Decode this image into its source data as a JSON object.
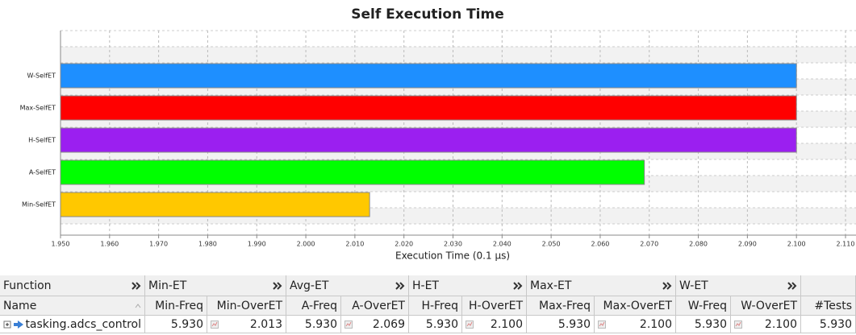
{
  "chart_data": {
    "type": "bar",
    "orientation": "horizontal",
    "title": "Self Execution Time",
    "x_label": "Execution Time (0.1 µs)",
    "categories": [
      "W-SelfET",
      "Max-SelfET",
      "H-SelfET",
      "A-SelfET",
      "Min-SelfET"
    ],
    "values": [
      2.1,
      2.1,
      2.1,
      2.069,
      2.013
    ],
    "colors": [
      "#1e8fff",
      "#ff0000",
      "#9b1ff0",
      "#00ff00",
      "#ffc800"
    ],
    "xlim": [
      1.95,
      2.11
    ],
    "xticks": [
      {
        "value": 1.95,
        "label": "1.950"
      },
      {
        "value": 1.96,
        "label": "1.960"
      },
      {
        "value": 1.97,
        "label": "1.970"
      },
      {
        "value": 1.98,
        "label": "1.980"
      },
      {
        "value": 1.99,
        "label": "1.990"
      },
      {
        "value": 2.0,
        "label": "2.000"
      },
      {
        "value": 2.01,
        "label": "2.010"
      },
      {
        "value": 2.02,
        "label": "2.020"
      },
      {
        "value": 2.03,
        "label": "2.030"
      },
      {
        "value": 2.04,
        "label": "2.040"
      },
      {
        "value": 2.05,
        "label": "2.050"
      },
      {
        "value": 2.06,
        "label": "2.060"
      },
      {
        "value": 2.07,
        "label": "2.070"
      },
      {
        "value": 2.08,
        "label": "2.080"
      },
      {
        "value": 2.09,
        "label": "2.090"
      },
      {
        "value": 2.1,
        "label": "2.100"
      },
      {
        "value": 2.11,
        "label": "2.110"
      }
    ],
    "grid": true
  },
  "table": {
    "group_headers": [
      "Function",
      "Min-ET",
      "Avg-ET",
      "H-ET",
      "Max-ET",
      "W-ET"
    ],
    "columns": [
      "Name",
      "Min-Freq",
      "Min-OverET",
      "A-Freq",
      "A-OverET",
      "H-Freq",
      "H-OverET",
      "Max-Freq",
      "Max-OverET",
      "W-Freq",
      "W-OverET",
      "#Tests"
    ],
    "rows": [
      [
        "tasking.adcs_control",
        "5.930",
        "2.013",
        "5.930",
        "2.069",
        "5.930",
        "2.100",
        "5.930",
        "2.100",
        "5.930",
        "2.100",
        "5.930"
      ]
    ]
  }
}
